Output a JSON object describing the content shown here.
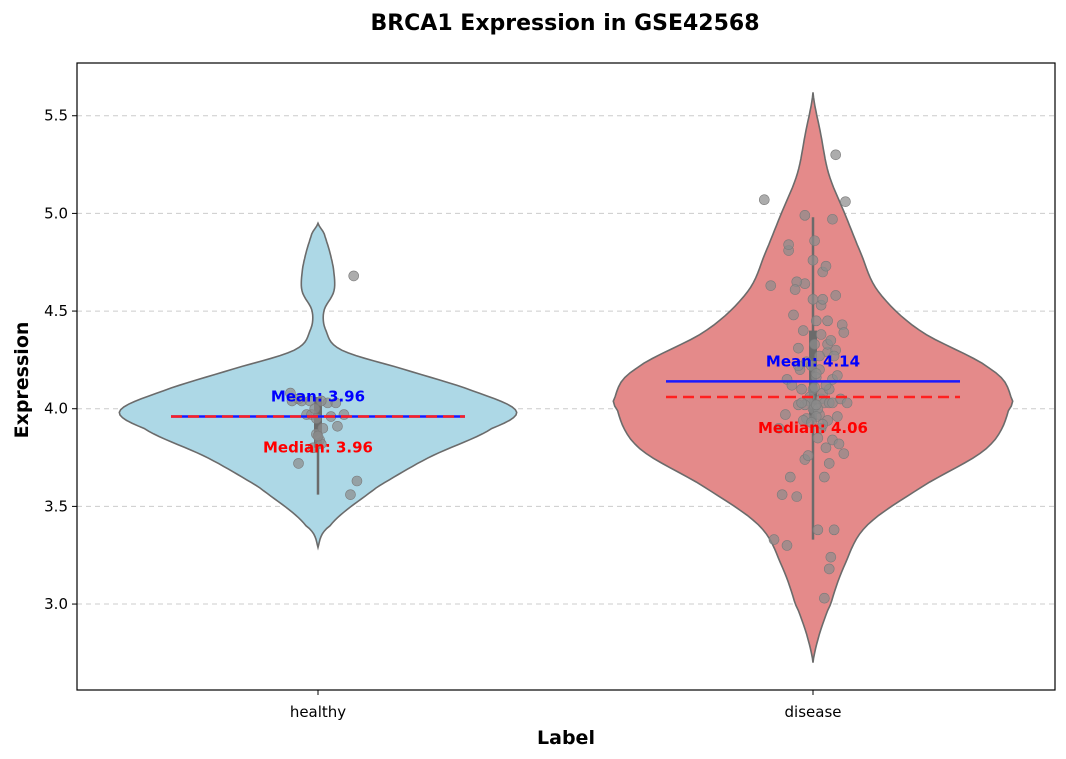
{
  "chart_data": {
    "type": "violin",
    "title": "BRCA1 Expression in GSE42568",
    "xlabel": "Label",
    "ylabel": "Expression",
    "ylim": [
      2.56,
      5.77
    ],
    "yticks": [
      "3.0",
      "3.5",
      "4.0",
      "4.5",
      "5.0",
      "5.5"
    ],
    "ytick_values": [
      3.0,
      3.5,
      4.0,
      4.5,
      5.0,
      5.5
    ],
    "grid": "y-dashed",
    "categories": [
      "healthy",
      "disease"
    ],
    "colors": {
      "healthy_fill": "#add8e6",
      "disease_fill": "#e48a8a",
      "violin_edge": "#6b6b6b",
      "mean_line": "#1a1aff",
      "median_line": "#ff2020",
      "points": "#8c8c8c",
      "mean_text": "#0000ff",
      "median_text": "#ff0000",
      "grid": "#cccccc"
    },
    "series": [
      {
        "category": "healthy",
        "mean": 3.96,
        "median": 3.96,
        "mean_label": "Mean: 3.96",
        "median_label": "Median: 3.96",
        "q1": 3.8,
        "q3": 4.06,
        "whisker_low": 3.56,
        "whisker_high": 4.06,
        "density_y": [
          3.29,
          3.4,
          3.6,
          3.75,
          3.9,
          3.99,
          4.1,
          4.2,
          4.3,
          4.4,
          4.5,
          4.6,
          4.7,
          4.8,
          4.9,
          4.95
        ],
        "density_w": [
          0.0,
          0.06,
          0.3,
          0.56,
          0.88,
          1.0,
          0.76,
          0.44,
          0.12,
          0.04,
          0.03,
          0.08,
          0.08,
          0.06,
          0.03,
          0.0
        ],
        "points": [
          [
            0.22,
            4.68
          ],
          [
            -0.12,
            3.72
          ],
          [
            -0.03,
            3.8
          ],
          [
            0.01,
            3.84
          ],
          [
            0.02,
            3.82
          ],
          [
            -0.01,
            3.87
          ],
          [
            -0.07,
            3.97
          ],
          [
            -0.16,
            4.04
          ],
          [
            -0.12,
            4.05
          ],
          [
            -0.1,
            4.04
          ],
          [
            -0.05,
            4.04
          ],
          [
            0.06,
            4.03
          ],
          [
            -0.04,
            3.97
          ],
          [
            0.08,
            3.96
          ],
          [
            -0.01,
            3.95
          ],
          [
            0.11,
            4.03
          ],
          [
            0.12,
            3.91
          ],
          [
            0.16,
            3.97
          ],
          [
            0.24,
            3.63
          ],
          [
            0.2,
            3.56
          ],
          [
            0.02,
            4.04
          ],
          [
            -0.02,
            4.0
          ],
          [
            0.03,
            3.9
          ],
          [
            -0.17,
            4.08
          ],
          [
            0.0,
            3.86
          ]
        ]
      },
      {
        "category": "disease",
        "mean": 4.14,
        "median": 4.06,
        "mean_label": "Mean: 4.14",
        "median_label": "Median: 4.06",
        "q1": 3.94,
        "q3": 4.4,
        "whisker_low": 3.33,
        "whisker_high": 4.98,
        "density_y": [
          2.7,
          2.8,
          2.9,
          3.0,
          3.2,
          3.4,
          3.6,
          3.8,
          4.0,
          4.06,
          4.2,
          4.4,
          4.6,
          4.8,
          5.0,
          5.2,
          5.4,
          5.62
        ],
        "density_w": [
          0.0,
          0.02,
          0.05,
          0.09,
          0.16,
          0.27,
          0.55,
          0.88,
          0.99,
          1.0,
          0.9,
          0.54,
          0.33,
          0.24,
          0.16,
          0.08,
          0.04,
          0.0
        ],
        "points": [
          [
            -0.26,
            4.63
          ],
          [
            -0.05,
            4.64
          ],
          [
            -0.1,
            4.65
          ],
          [
            0.06,
            4.7
          ],
          [
            0.14,
            4.58
          ],
          [
            0.18,
            4.43
          ],
          [
            0.02,
            4.45
          ],
          [
            0.05,
            4.53
          ],
          [
            0.09,
            4.29
          ],
          [
            0.09,
            4.33
          ],
          [
            0.12,
            4.15
          ],
          [
            0.14,
            4.3
          ],
          [
            0.05,
            4.05
          ],
          [
            -0.07,
            4.1
          ],
          [
            -0.06,
            4.4
          ],
          [
            0.04,
            4.2
          ],
          [
            0.07,
            4.03
          ],
          [
            0.1,
            4.03
          ],
          [
            0.12,
            4.03
          ],
          [
            0.01,
            4.02
          ],
          [
            0.0,
            4.0
          ],
          [
            0.04,
            3.97
          ],
          [
            -0.04,
            3.95
          ],
          [
            -0.17,
            3.97
          ],
          [
            -0.21,
            3.9
          ],
          [
            -0.05,
            3.74
          ],
          [
            -0.03,
            3.76
          ],
          [
            0.05,
            3.9
          ],
          [
            0.08,
            3.8
          ],
          [
            0.03,
            3.85
          ],
          [
            -0.14,
            3.65
          ],
          [
            -0.1,
            3.55
          ],
          [
            -0.16,
            3.3
          ],
          [
            -0.19,
            3.56
          ],
          [
            -0.24,
            3.33
          ],
          [
            0.11,
            3.24
          ],
          [
            0.1,
            3.18
          ],
          [
            0.07,
            3.03
          ],
          [
            0.13,
            3.38
          ],
          [
            0.03,
            3.38
          ],
          [
            -0.08,
            4.2
          ],
          [
            -0.04,
            4.24
          ],
          [
            0.01,
            4.33
          ],
          [
            0.02,
            4.16
          ],
          [
            -0.01,
            4.22
          ],
          [
            0.0,
            4.1
          ],
          [
            -0.02,
            4.06
          ],
          [
            -0.03,
            4.04
          ],
          [
            0.06,
            4.08
          ],
          [
            0.03,
            4.0
          ],
          [
            -0.05,
            4.02
          ],
          [
            0.02,
            3.96
          ],
          [
            -0.06,
            3.94
          ],
          [
            0.1,
            4.1
          ],
          [
            0.11,
            4.35
          ],
          [
            0.13,
            4.27
          ],
          [
            0.15,
            4.17
          ],
          [
            0.09,
            3.94
          ],
          [
            0.12,
            3.84
          ],
          [
            0.16,
            3.82
          ],
          [
            -0.09,
            4.02
          ],
          [
            0.01,
            4.86
          ],
          [
            0.0,
            4.76
          ],
          [
            -0.15,
            4.81
          ],
          [
            -0.15,
            4.84
          ],
          [
            -0.12,
            4.48
          ],
          [
            -0.09,
            4.31
          ],
          [
            -0.16,
            4.15
          ],
          [
            0.19,
            4.39
          ],
          [
            0.19,
            3.77
          ],
          [
            0.14,
            5.3
          ],
          [
            0.2,
            5.06
          ],
          [
            -0.3,
            5.07
          ],
          [
            0.12,
            4.97
          ],
          [
            -0.05,
            4.99
          ],
          [
            0.08,
            4.73
          ],
          [
            0.1,
            3.72
          ],
          [
            0.07,
            3.65
          ],
          [
            0.15,
            3.96
          ],
          [
            0.17,
            4.05
          ],
          [
            0.21,
            4.03
          ],
          [
            -0.01,
            3.93
          ],
          [
            0.02,
            4.18
          ],
          [
            0.05,
            4.38
          ],
          [
            0.06,
            3.92
          ],
          [
            0.08,
            4.12
          ],
          [
            -0.13,
            4.12
          ],
          [
            -0.11,
            4.61
          ],
          [
            0.09,
            4.45
          ],
          [
            0.04,
            4.27
          ],
          [
            0.01,
            4.11
          ],
          [
            0.02,
            4.02
          ],
          [
            0.0,
            4.56
          ],
          [
            -0.09,
            4.22
          ],
          [
            0.06,
            4.56
          ],
          [
            -0.07,
            4.03
          ]
        ]
      }
    ]
  }
}
